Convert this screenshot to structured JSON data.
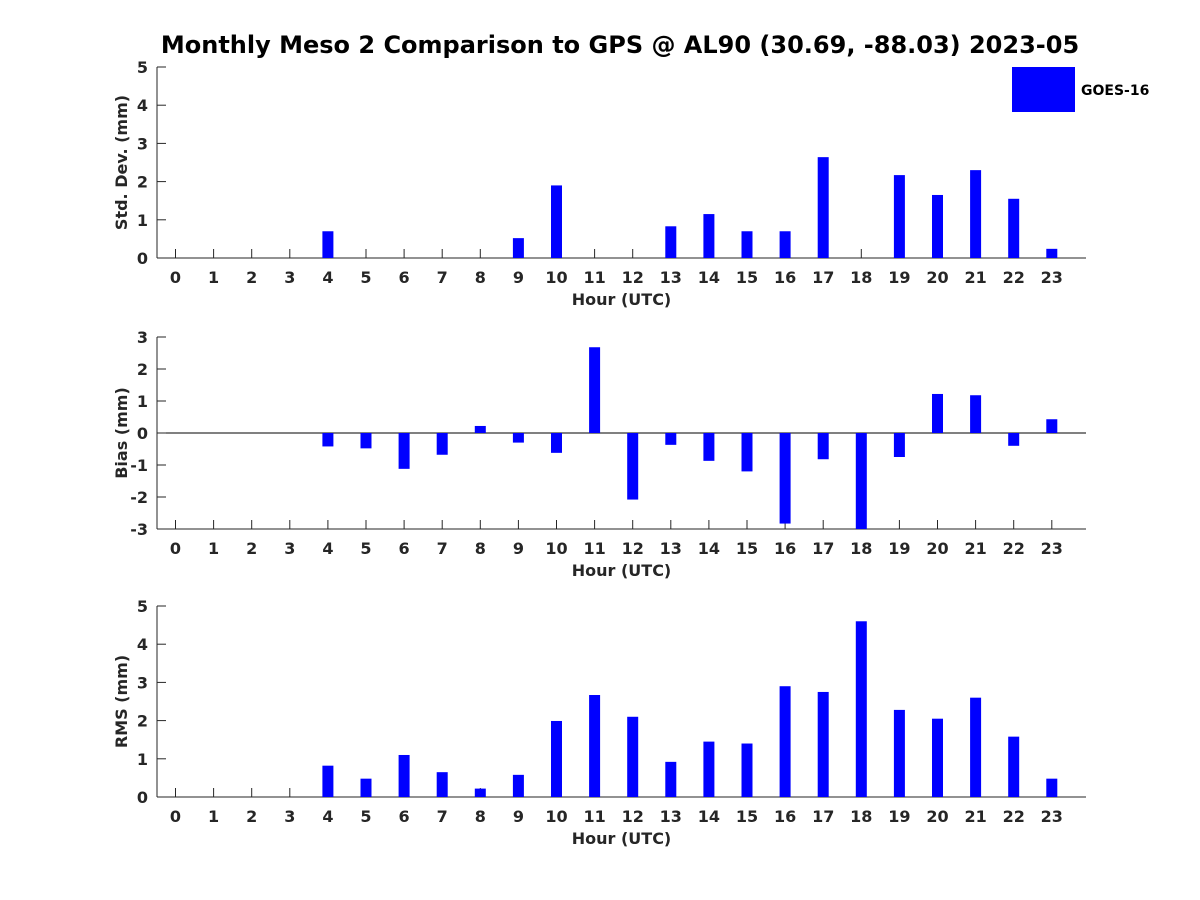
{
  "title": "Monthly Meso 2 Comparison to GPS @ AL90 (30.69, -88.03) 2023-05",
  "colors": {
    "bar": "#0000ff",
    "axis": "#262626"
  },
  "chart_data": [
    {
      "type": "bar",
      "categories": [
        "0",
        "1",
        "2",
        "3",
        "4",
        "5",
        "6",
        "7",
        "8",
        "9",
        "10",
        "11",
        "12",
        "13",
        "14",
        "15",
        "16",
        "17",
        "18",
        "19",
        "20",
        "21",
        "22",
        "23"
      ],
      "series": [
        {
          "name": "GOES-16",
          "values": [
            0,
            0,
            0,
            0,
            0.7,
            0,
            0,
            0,
            0,
            0.52,
            1.9,
            0,
            0,
            0.83,
            1.15,
            0.7,
            0.7,
            2.64,
            0,
            2.17,
            1.65,
            2.3,
            1.55,
            0.24
          ]
        }
      ],
      "xlabel": "Hour (UTC)",
      "ylabel": "Std. Dev. (mm)",
      "ylim": [
        0,
        5
      ],
      "yticks": [
        "0",
        "1",
        "2",
        "3",
        "4",
        "5"
      ],
      "legend": "top-right",
      "grid": false
    },
    {
      "type": "bar",
      "categories": [
        "0",
        "1",
        "2",
        "3",
        "4",
        "5",
        "6",
        "7",
        "8",
        "9",
        "10",
        "11",
        "12",
        "13",
        "14",
        "15",
        "16",
        "17",
        "18",
        "19",
        "20",
        "21",
        "22",
        "23"
      ],
      "series": [
        {
          "values": [
            0,
            0,
            0,
            0,
            -0.42,
            -0.48,
            -1.12,
            -0.68,
            0.22,
            -0.3,
            -0.62,
            2.68,
            -2.08,
            -0.37,
            -0.87,
            -1.2,
            -2.83,
            -0.82,
            -3.0,
            -0.75,
            1.22,
            1.18,
            -0.4,
            0.43
          ]
        }
      ],
      "xlabel": "Hour (UTC)",
      "ylabel": "Bias (mm)",
      "ylim": [
        -3,
        3
      ],
      "yticks": [
        "-3",
        "-2",
        "-1",
        "0",
        "1",
        "2",
        "3"
      ],
      "grid": false
    },
    {
      "type": "bar",
      "categories": [
        "0",
        "1",
        "2",
        "3",
        "4",
        "5",
        "6",
        "7",
        "8",
        "9",
        "10",
        "11",
        "12",
        "13",
        "14",
        "15",
        "16",
        "17",
        "18",
        "19",
        "20",
        "21",
        "22",
        "23"
      ],
      "series": [
        {
          "values": [
            0,
            0,
            0,
            0,
            0.82,
            0.48,
            1.1,
            0.65,
            0.22,
            0.58,
            1.99,
            2.67,
            2.1,
            0.92,
            1.45,
            1.4,
            2.9,
            2.75,
            4.6,
            2.28,
            2.05,
            2.6,
            1.58,
            0.48
          ]
        }
      ],
      "xlabel": "Hour (UTC)",
      "ylabel": "RMS (mm)",
      "ylim": [
        0,
        5
      ],
      "yticks": [
        "0",
        "1",
        "2",
        "3",
        "4",
        "5"
      ],
      "grid": false
    }
  ]
}
